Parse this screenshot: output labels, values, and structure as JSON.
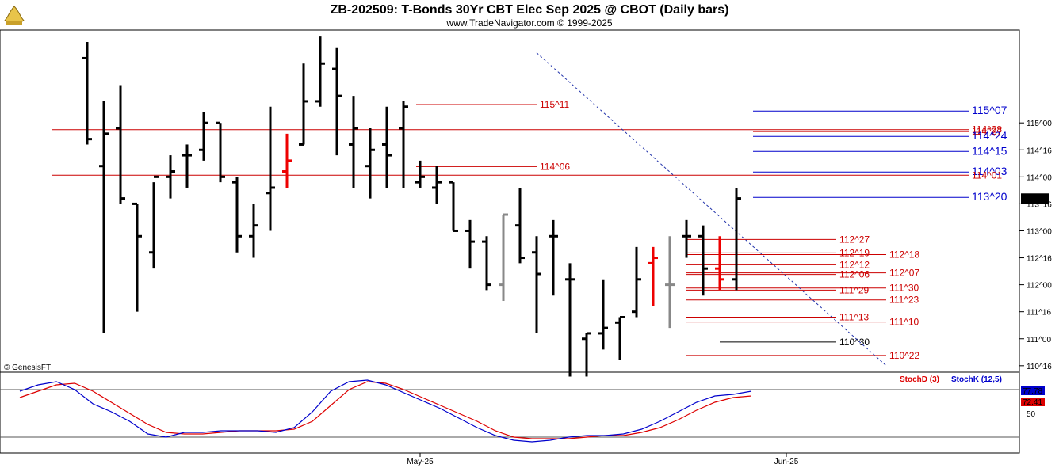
{
  "header": {
    "title": "ZB-202509:  T-Bonds 30Yr CBT Elec Sep 2025 @ CBOT  (Daily bars)",
    "subtitle": "www.TradeNavigator.com © 1999-2025",
    "watermark": "© GenesisFT",
    "logo_icon": "genie-lamp-icon"
  },
  "colors": {
    "up_bar": "#000000",
    "red_line": "#cc0000",
    "blue_line": "#0000cc",
    "green_bar": "#22cc22",
    "red_bar": "#ee0000",
    "gray_bar": "#888888",
    "stoch_d": "#dd0000",
    "stoch_k": "#0000cc"
  },
  "chart_data": {
    "type": "ohlc",
    "price_axis": {
      "ticks": [
        "110^16",
        "111^00",
        "111^16",
        "112^00",
        "112^16",
        "113^00",
        "113^16",
        "114^00",
        "114^16",
        "115^00"
      ],
      "tick_values": [
        110.5,
        111.0,
        111.5,
        112.0,
        112.5,
        113.0,
        113.5,
        114.0,
        114.5,
        115.0
      ],
      "current_price_label": "113^19",
      "current_price": 113.59
    },
    "x_axis": {
      "labels": [
        "May-25",
        "Jun-25"
      ],
      "label_bars": [
        20,
        42
      ]
    },
    "bars": [
      {
        "o": 116.2,
        "h": 116.5,
        "l": 114.6,
        "c": 114.7,
        "col": "black"
      },
      {
        "o": 114.2,
        "h": 115.4,
        "l": 111.1,
        "c": 114.8,
        "col": "black"
      },
      {
        "o": 114.9,
        "h": 115.7,
        "l": 113.5,
        "c": 113.6,
        "col": "black"
      },
      {
        "o": 113.5,
        "h": 113.5,
        "l": 111.5,
        "c": 112.9,
        "col": "black"
      },
      {
        "o": 112.6,
        "h": 113.9,
        "l": 112.3,
        "c": 114.0,
        "col": "black"
      },
      {
        "o": 114.0,
        "h": 114.4,
        "l": 113.6,
        "c": 114.1,
        "col": "black"
      },
      {
        "o": 114.4,
        "h": 114.6,
        "l": 113.8,
        "c": 114.4,
        "col": "black"
      },
      {
        "o": 114.5,
        "h": 115.2,
        "l": 114.3,
        "c": 115.0,
        "col": "black"
      },
      {
        "o": 115.0,
        "h": 115.0,
        "l": 113.9,
        "c": 114.0,
        "col": "black"
      },
      {
        "o": 113.9,
        "h": 114.0,
        "l": 112.6,
        "c": 112.9,
        "col": "black"
      },
      {
        "o": 112.9,
        "h": 113.5,
        "l": 112.5,
        "c": 113.1,
        "col": "black"
      },
      {
        "o": 113.7,
        "h": 115.3,
        "l": 113.0,
        "c": 113.8,
        "col": "black"
      },
      {
        "o": 114.1,
        "h": 114.8,
        "l": 113.8,
        "c": 114.3,
        "col": "red"
      },
      {
        "o": 114.6,
        "h": 116.1,
        "l": 114.6,
        "c": 115.4,
        "col": "black"
      },
      {
        "o": 115.4,
        "h": 116.6,
        "l": 115.3,
        "c": 116.1,
        "col": "black"
      },
      {
        "o": 116.0,
        "h": 116.4,
        "l": 114.4,
        "c": 115.5,
        "col": "black"
      },
      {
        "o": 114.6,
        "h": 115.5,
        "l": 113.8,
        "c": 114.9,
        "col": "black"
      },
      {
        "o": 114.2,
        "h": 114.9,
        "l": 113.6,
        "c": 114.5,
        "col": "black"
      },
      {
        "o": 114.6,
        "h": 115.3,
        "l": 113.8,
        "c": 114.4,
        "col": "black"
      },
      {
        "o": 114.9,
        "h": 115.4,
        "l": 113.8,
        "c": 115.3,
        "col": "black"
      },
      {
        "o": 113.9,
        "h": 114.3,
        "l": 113.8,
        "c": 114.0,
        "col": "black"
      },
      {
        "o": 113.8,
        "h": 114.2,
        "l": 113.5,
        "c": 113.9,
        "col": "black"
      },
      {
        "o": 113.9,
        "h": 113.9,
        "l": 113.0,
        "c": 113.0,
        "col": "black"
      },
      {
        "o": 113.0,
        "h": 113.2,
        "l": 112.3,
        "c": 112.8,
        "col": "black"
      },
      {
        "o": 112.8,
        "h": 112.9,
        "l": 111.9,
        "c": 112.0,
        "col": "black"
      },
      {
        "o": 112.0,
        "h": 113.3,
        "l": 111.7,
        "c": 113.3,
        "col": "gray"
      },
      {
        "o": 113.1,
        "h": 113.8,
        "l": 112.4,
        "c": 112.5,
        "col": "black"
      },
      {
        "o": 112.6,
        "h": 112.9,
        "l": 111.1,
        "c": 112.2,
        "col": "black"
      },
      {
        "o": 112.9,
        "h": 113.2,
        "l": 111.8,
        "c": 112.9,
        "col": "black"
      },
      {
        "o": 112.1,
        "h": 112.4,
        "l": 110.3,
        "c": 112.1,
        "col": "black"
      },
      {
        "o": 111.0,
        "h": 111.1,
        "l": 110.3,
        "c": 111.1,
        "col": "black"
      },
      {
        "o": 111.1,
        "h": 112.1,
        "l": 110.8,
        "c": 111.2,
        "col": "black"
      },
      {
        "o": 111.3,
        "h": 111.4,
        "l": 110.6,
        "c": 111.4,
        "col": "black"
      },
      {
        "o": 111.5,
        "h": 112.7,
        "l": 111.4,
        "c": 112.1,
        "col": "black"
      },
      {
        "o": 112.4,
        "h": 112.7,
        "l": 111.6,
        "c": 112.5,
        "col": "red"
      },
      {
        "o": 112.0,
        "h": 112.9,
        "l": 111.2,
        "c": 112.0,
        "col": "gray"
      },
      {
        "o": 112.9,
        "h": 113.2,
        "l": 112.5,
        "c": 112.9,
        "col": "black"
      },
      {
        "o": 112.9,
        "h": 113.1,
        "l": 111.8,
        "c": 112.3,
        "col": "black"
      },
      {
        "o": 112.3,
        "h": 112.9,
        "l": 111.9,
        "c": 112.1,
        "col": "red"
      },
      {
        "o": 112.1,
        "h": 113.8,
        "l": 111.9,
        "c": 113.6,
        "col": "black"
      }
    ],
    "overlays": [
      {
        "label": "115^11",
        "v": 115.34,
        "x0": 20,
        "x1": 27,
        "color": "red"
      },
      {
        "label": "115^07",
        "v": 115.22,
        "x0": 40,
        "x1": 53,
        "color": "blue"
      },
      {
        "label": "114^28",
        "v": 114.875,
        "x0": 0,
        "x1": 53,
        "color": "red"
      },
      {
        "label": "114^27",
        "v": 114.84,
        "x0": 40,
        "x1": 53,
        "color": "red"
      },
      {
        "label": "114^24",
        "v": 114.75,
        "x0": 40,
        "x1": 53,
        "color": "blue"
      },
      {
        "label": "114^15",
        "v": 114.47,
        "x0": 40,
        "x1": 53,
        "color": "blue"
      },
      {
        "label": "114^06",
        "v": 114.19,
        "x0": 20,
        "x1": 27,
        "color": "red"
      },
      {
        "label": "114^03",
        "v": 114.09,
        "x0": 40,
        "x1": 53,
        "color": "blue"
      },
      {
        "label": "114^01",
        "v": 114.03,
        "x0": 0,
        "x1": 53,
        "color": "red"
      },
      {
        "label": "113^20",
        "v": 113.62,
        "x0": 40,
        "x1": 53,
        "color": "blue"
      },
      {
        "label": "112^27",
        "v": 112.84,
        "x0": 36,
        "x1": 45,
        "color": "red"
      },
      {
        "label": "112^19",
        "v": 112.59,
        "x0": 36,
        "x1": 45,
        "color": "red"
      },
      {
        "label": "112^18",
        "v": 112.56,
        "x0": 36,
        "x1": 48,
        "color": "red"
      },
      {
        "label": "112^12",
        "v": 112.37,
        "x0": 36,
        "x1": 45,
        "color": "red"
      },
      {
        "label": "112^07",
        "v": 112.22,
        "x0": 36,
        "x1": 48,
        "color": "red"
      },
      {
        "label": "112^06",
        "v": 112.19,
        "x0": 36,
        "x1": 45,
        "color": "red"
      },
      {
        "label": "111^30",
        "v": 111.94,
        "x0": 36,
        "x1": 48,
        "color": "red"
      },
      {
        "label": "111^29",
        "v": 111.9,
        "x0": 36,
        "x1": 45,
        "color": "red"
      },
      {
        "label": "111^23",
        "v": 111.72,
        "x0": 36,
        "x1": 48,
        "color": "red"
      },
      {
        "label": "111^13",
        "v": 111.4,
        "x0": 36,
        "x1": 45,
        "color": "red"
      },
      {
        "label": "111^10",
        "v": 111.31,
        "x0": 36,
        "x1": 48,
        "color": "red"
      },
      {
        "label": "110^30",
        "v": 110.94,
        "x0": 38,
        "x1": 45,
        "color": "black"
      },
      {
        "label": "110^22",
        "v": 110.69,
        "x0": 36,
        "x1": 48,
        "color": "red"
      }
    ],
    "trendline": {
      "from": [
        27,
        116.3
      ],
      "to": [
        48,
        110.5
      ]
    },
    "stochastic": {
      "label_d": "StochD (3)",
      "label_k": "StochK (12,5)",
      "value_d_label": "72.41",
      "value_k_label": "77.78",
      "tick_50": "50",
      "levels": [
        80,
        20
      ],
      "k": [
        78,
        86,
        90,
        80,
        62,
        52,
        40,
        24,
        20,
        26,
        26,
        28,
        28,
        28,
        26,
        32,
        52,
        78,
        90,
        92,
        86,
        76,
        66,
        56,
        44,
        32,
        22,
        16,
        14,
        16,
        20,
        22,
        22,
        24,
        30,
        40,
        52,
        64,
        72,
        74,
        78
      ],
      "d": [
        70,
        78,
        86,
        88,
        78,
        64,
        50,
        36,
        26,
        24,
        24,
        26,
        28,
        28,
        28,
        30,
        40,
        60,
        80,
        90,
        88,
        80,
        70,
        60,
        50,
        40,
        28,
        20,
        18,
        18,
        18,
        20,
        22,
        22,
        26,
        32,
        42,
        54,
        64,
        70,
        72
      ]
    }
  }
}
